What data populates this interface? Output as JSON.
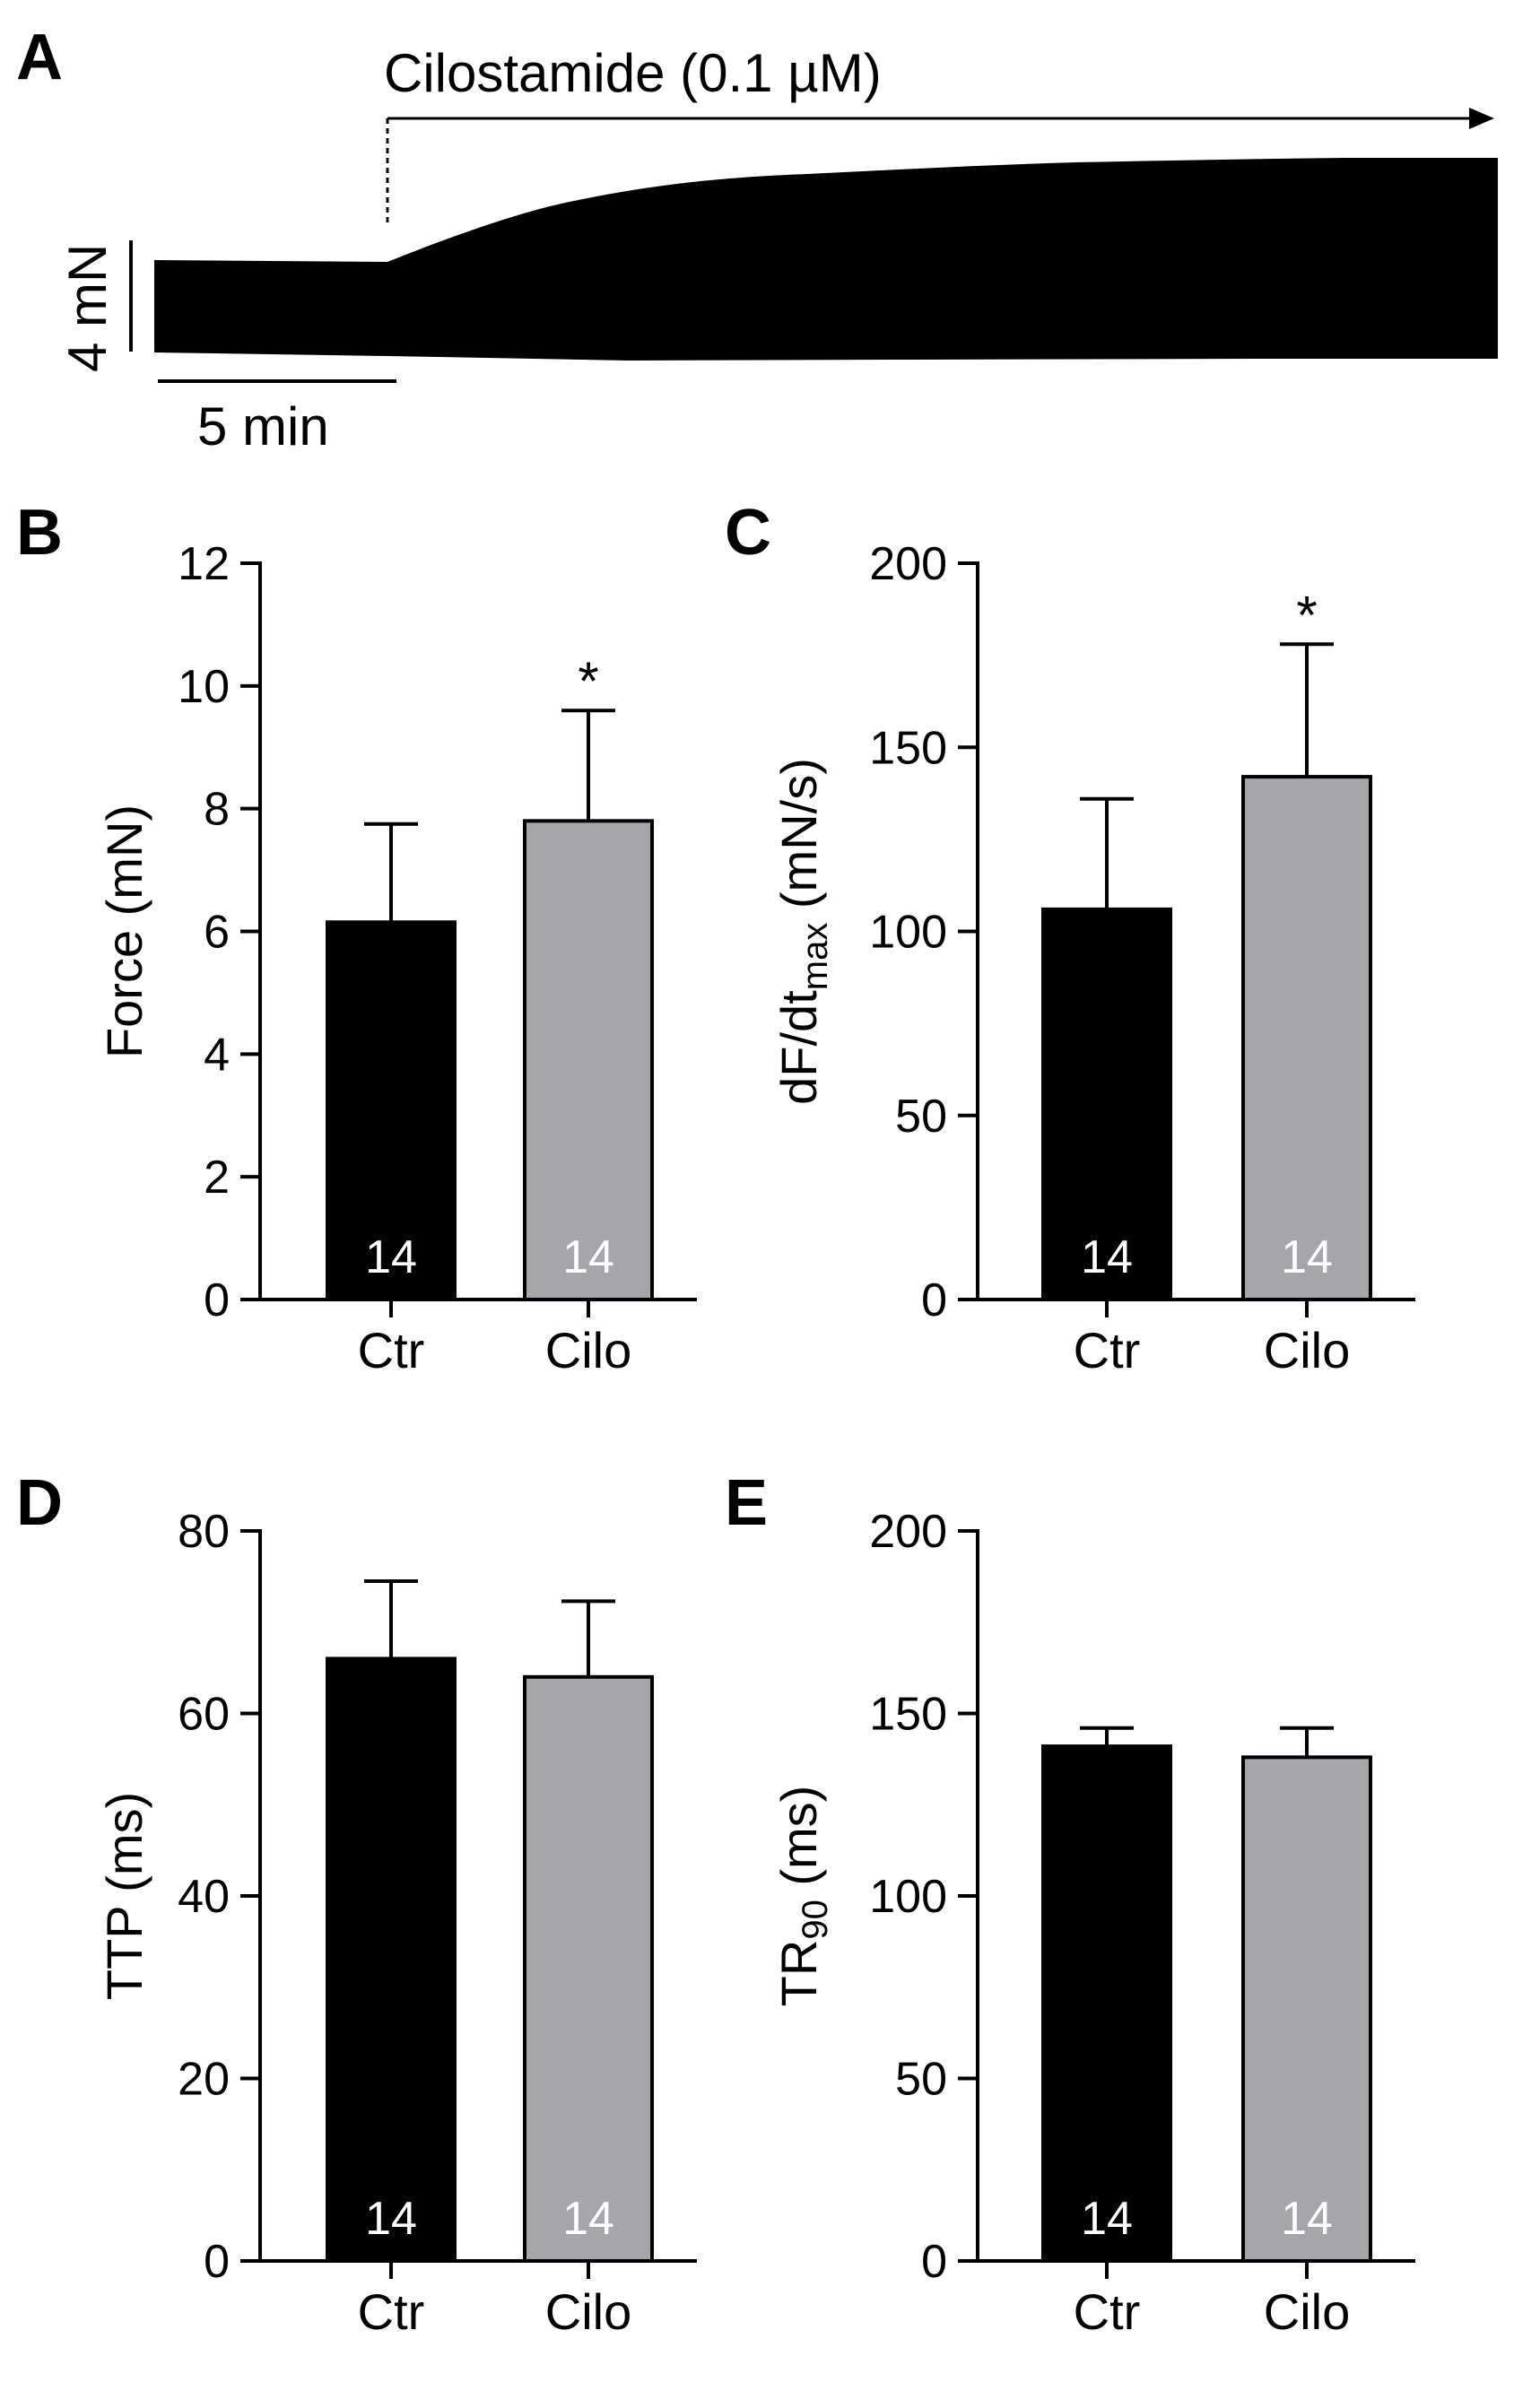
{
  "trace": {
    "panel": "A",
    "drug_label": "Cilostamide (0.1 µM)",
    "force_scale": "4 mN",
    "time_scale": "5 min"
  },
  "chart_data": [
    {
      "panel": "B",
      "type": "bar",
      "categories": [
        "Ctr",
        "Cilo"
      ],
      "values": [
        6.15,
        7.8
      ],
      "errors": [
        1.6,
        1.8
      ],
      "n": [
        "14",
        "14"
      ],
      "significance": [
        "",
        "*"
      ],
      "bar_colors": [
        "#000000",
        "#a6a6aa"
      ],
      "ylabel": {
        "main": "Force (mN)",
        "sub": ""
      },
      "ylim": [
        0,
        12
      ],
      "yticks": [
        0,
        2,
        4,
        6,
        8,
        10,
        12
      ],
      "ytick_labels": [
        "0",
        "2",
        "4",
        "6",
        "8",
        "10",
        "12"
      ]
    },
    {
      "panel": "C",
      "type": "bar",
      "categories": [
        "Ctr",
        "Cilo"
      ],
      "values": [
        106,
        142
      ],
      "errors": [
        30,
        36
      ],
      "n": [
        "14",
        "14"
      ],
      "significance": [
        "",
        "*"
      ],
      "bar_colors": [
        "#000000",
        "#a6a6aa"
      ],
      "ylabel": {
        "main": "dF/dt",
        "sub": "max",
        "suffix": " (mN/s)"
      },
      "ylim": [
        0,
        200
      ],
      "yticks": [
        0,
        50,
        100,
        150,
        200
      ],
      "ytick_labels": [
        "0",
        "50",
        "100",
        "150",
        "200"
      ]
    },
    {
      "panel": "D",
      "type": "bar",
      "categories": [
        "Ctr",
        "Cilo"
      ],
      "values": [
        66,
        64
      ],
      "errors": [
        8.5,
        8.3
      ],
      "n": [
        "14",
        "14"
      ],
      "significance": [
        "",
        ""
      ],
      "bar_colors": [
        "#000000",
        "#a6a6aa"
      ],
      "ylabel": {
        "main": "TTP (ms)",
        "sub": ""
      },
      "ylim": [
        0,
        80
      ],
      "yticks": [
        0,
        20,
        40,
        60,
        80
      ],
      "ytick_labels": [
        "0",
        "20",
        "40",
        "60",
        "80"
      ]
    },
    {
      "panel": "E",
      "type": "bar",
      "categories": [
        "Ctr",
        "Cilo"
      ],
      "values": [
        141,
        138
      ],
      "errors": [
        5,
        8
      ],
      "n": [
        "14",
        "14"
      ],
      "significance": [
        "",
        ""
      ],
      "bar_colors": [
        "#000000",
        "#a6a6aa"
      ],
      "ylabel": {
        "main": "TR",
        "sub": "90",
        "suffix": " (ms)"
      },
      "ylim": [
        0,
        200
      ],
      "yticks": [
        0,
        50,
        100,
        150,
        200
      ],
      "ytick_labels": [
        "0",
        "50",
        "100",
        "150",
        "200"
      ]
    }
  ]
}
